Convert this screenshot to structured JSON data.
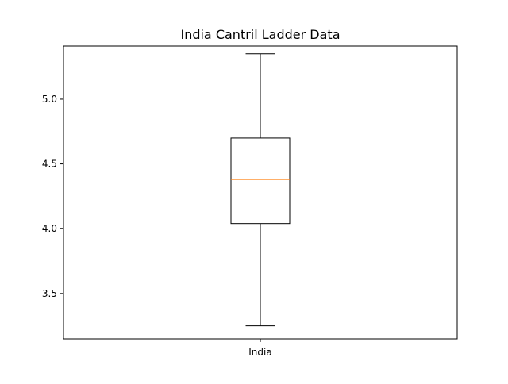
{
  "chart_data": {
    "type": "box",
    "title": "India Cantril Ladder Data",
    "xlabel": "",
    "ylabel": "",
    "categories": [
      "India"
    ],
    "ylim": [
      3.15,
      5.41
    ],
    "yticks": [
      3.5,
      4.0,
      4.5,
      5.0
    ],
    "ytick_labels": [
      "3.5",
      "4.0",
      "4.5",
      "5.0"
    ],
    "grid": false,
    "boxes": [
      {
        "name": "India",
        "whisker_low": 3.25,
        "q1": 4.04,
        "median": 4.38,
        "q3": 4.7,
        "whisker_high": 5.35
      }
    ],
    "colors": {
      "box": "#000000",
      "median": "#ff7f0e",
      "axes": "#000000"
    }
  }
}
